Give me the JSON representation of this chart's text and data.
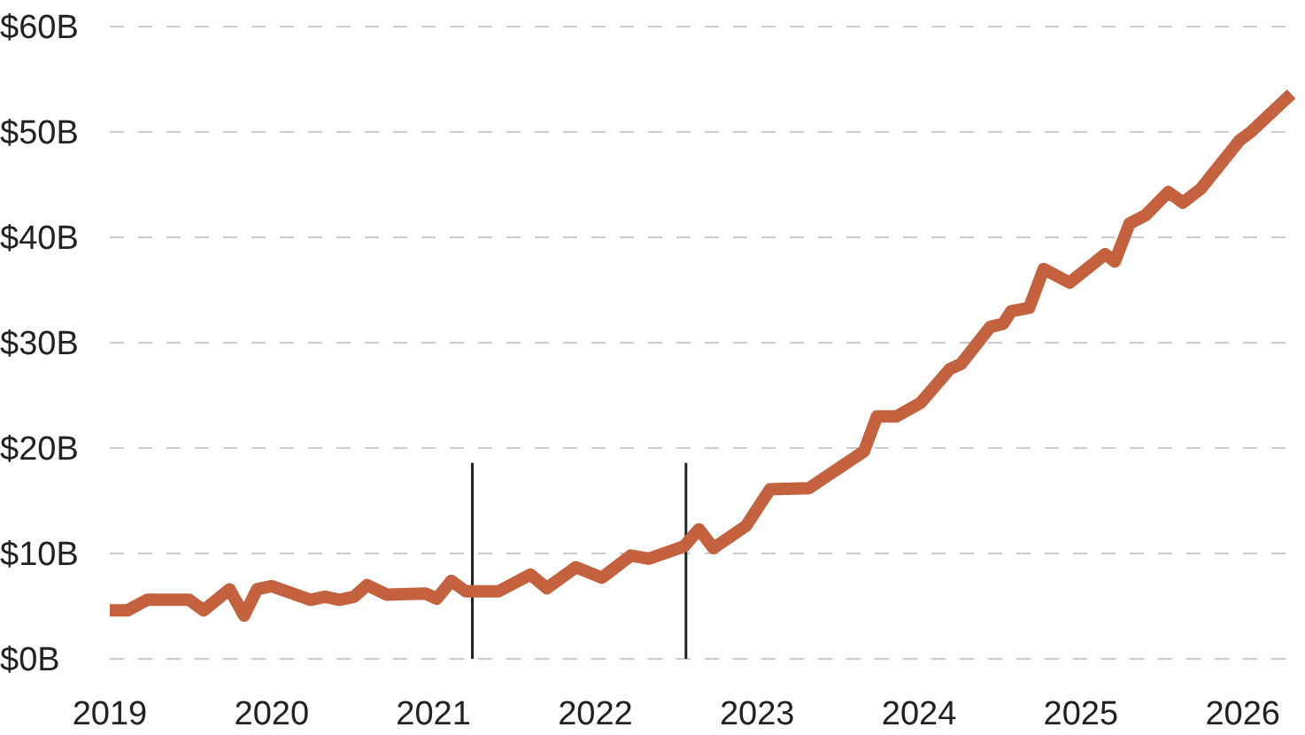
{
  "chart_data": {
    "type": "line",
    "x": [
      2019.0,
      2019.11,
      2019.23,
      2019.49,
      2019.58,
      2019.74,
      2019.83,
      2019.91,
      2020.0,
      2020.24,
      2020.33,
      2020.42,
      2020.51,
      2020.59,
      2020.71,
      2020.95,
      2021.02,
      2021.11,
      2021.2,
      2021.4,
      2021.6,
      2021.7,
      2021.88,
      2022.04,
      2022.22,
      2022.33,
      2022.48,
      2022.55,
      2022.64,
      2022.73,
      2022.93,
      2023.08,
      2023.32,
      2023.66,
      2023.74,
      2023.86,
      2024.01,
      2024.19,
      2024.26,
      2024.44,
      2024.52,
      2024.57,
      2024.68,
      2024.77,
      2024.93,
      2025.15,
      2025.21,
      2025.3,
      2025.4,
      2025.54,
      2025.63,
      2025.74,
      2025.98,
      2026.05,
      2026.3
    ],
    "series": [
      {
        "color": "#c4623f",
        "values": [
          4.6,
          4.6,
          5.6,
          5.6,
          4.6,
          6.6,
          4.1,
          6.6,
          6.9,
          5.6,
          5.9,
          5.6,
          5.9,
          7.0,
          6.1,
          6.2,
          5.7,
          7.4,
          6.4,
          6.4,
          8.0,
          6.7,
          8.7,
          7.7,
          9.8,
          9.5,
          10.3,
          10.7,
          12.3,
          10.5,
          12.6,
          16.1,
          16.2,
          19.7,
          23.0,
          23.0,
          24.3,
          27.5,
          28.0,
          31.5,
          31.8,
          33.0,
          33.3,
          37.0,
          35.7,
          38.4,
          37.7,
          41.3,
          42.1,
          44.3,
          43.3,
          44.6,
          49.2,
          50.0,
          53.6
        ]
      }
    ],
    "xlim": [
      2019,
      2026.33
    ],
    "xticks": [
      2019,
      2020,
      2021,
      2022,
      2023,
      2024,
      2025,
      2026
    ],
    "ylim": [
      0,
      60
    ],
    "yticks": [
      {
        "value": 0,
        "label": "$0B"
      },
      {
        "value": 10,
        "label": "$10B"
      },
      {
        "value": 20,
        "label": "$20B"
      },
      {
        "value": 30,
        "label": "$30B"
      },
      {
        "value": 40,
        "label": "$40B"
      },
      {
        "value": 50,
        "label": "$50B"
      },
      {
        "value": 60,
        "label": "$60B"
      }
    ],
    "grid": "y",
    "line_style": "solid",
    "ref_lines": [
      {
        "axis": "x",
        "value": 2021.24,
        "color": "#222222"
      },
      {
        "axis": "x",
        "value": 2022.56,
        "color": "#222222"
      }
    ]
  }
}
